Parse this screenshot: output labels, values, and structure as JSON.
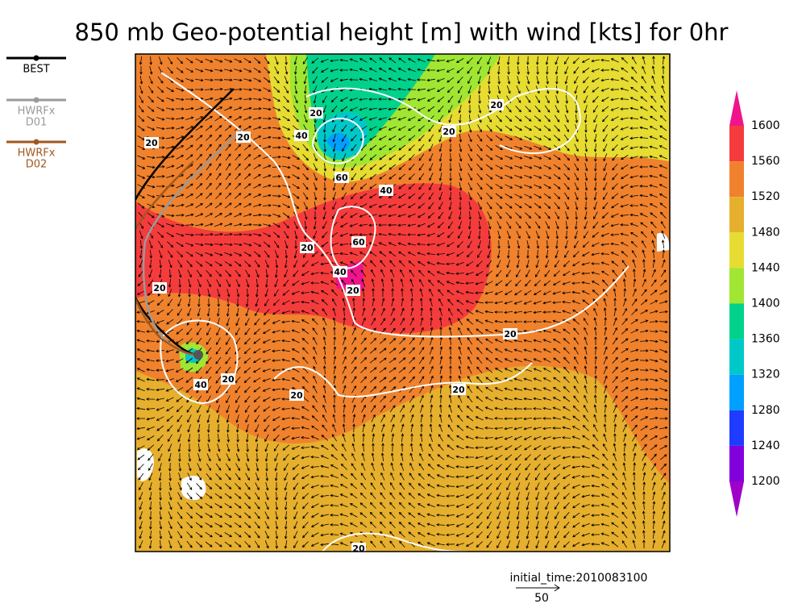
{
  "title": "850 mb Geo-potential height [m] with wind [kts] for 0hr",
  "legend": [
    {
      "label": [
        "BEST"
      ],
      "color": "#000000"
    },
    {
      "label": [
        "HWRFx",
        "D01"
      ],
      "color": "#9a9a9a"
    },
    {
      "label": [
        "HWRFx",
        "D02"
      ],
      "color": "#a0581e"
    }
  ],
  "colorbar": {
    "labels": [
      1600,
      1560,
      1520,
      1480,
      1440,
      1400,
      1360,
      1320,
      1280,
      1240,
      1200
    ],
    "colors": [
      "#f0148c",
      "#f53c3c",
      "#f0822d",
      "#e6af2d",
      "#e6dc32",
      "#a0e632",
      "#00d28c",
      "#00c8c8",
      "#00a0ff",
      "#1e3cff",
      "#8200dc",
      "#a000c8"
    ]
  },
  "contour_labels": [
    20,
    20,
    20,
    20,
    20,
    40,
    60,
    40,
    60,
    20,
    40,
    20,
    20,
    20,
    40,
    20,
    20,
    20,
    20
  ],
  "initial_time": "initial_time:2010083100",
  "vector_scale": "50"
}
